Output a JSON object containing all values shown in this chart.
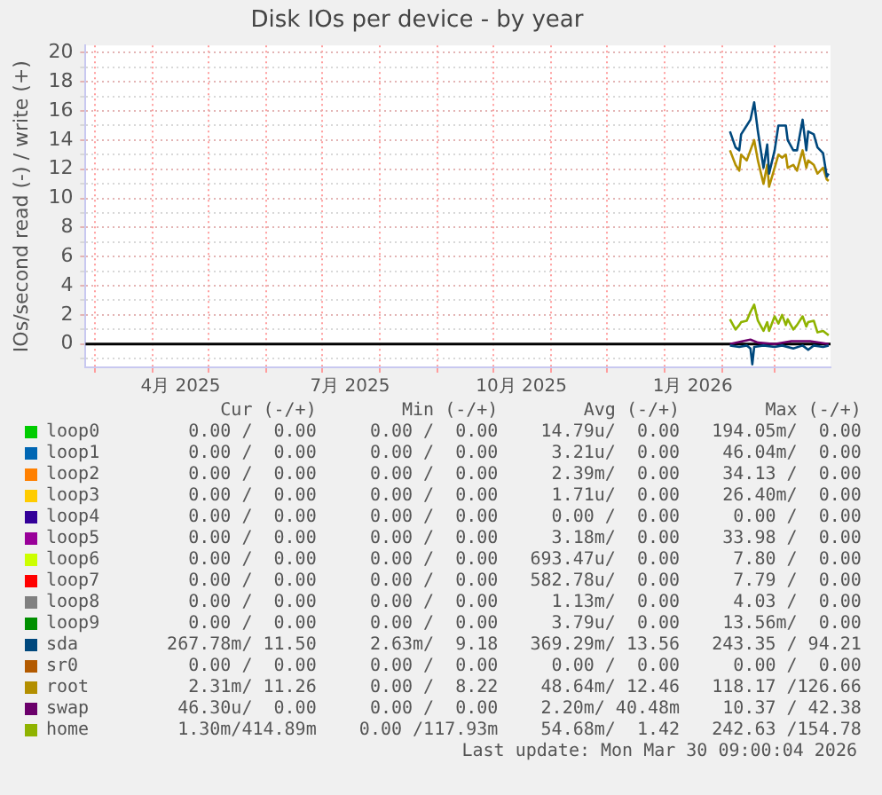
{
  "chart_data": {
    "type": "line",
    "title": "Disk IOs per device - by year",
    "ylabel": "IOs/second read (-) / write (+)",
    "xlim": [
      "2025-02-24",
      "2026-03-31"
    ],
    "xticks": [
      {
        "value": "2025-03-01",
        "label": null
      },
      {
        "value": "2025-04-01",
        "label": null
      },
      {
        "value": "2025-04-16",
        "label": "4月 2025"
      },
      {
        "value": "2025-05-01",
        "label": null
      },
      {
        "value": "2025-06-01",
        "label": null
      },
      {
        "value": "2025-07-01",
        "label": null
      },
      {
        "value": "2025-07-16",
        "label": "7月 2025"
      },
      {
        "value": "2025-08-01",
        "label": null
      },
      {
        "value": "2025-09-01",
        "label": null
      },
      {
        "value": "2025-10-01",
        "label": null
      },
      {
        "value": "2025-10-16",
        "label": "10月 2025"
      },
      {
        "value": "2025-11-01",
        "label": null
      },
      {
        "value": "2025-12-01",
        "label": null
      },
      {
        "value": "2026-01-01",
        "label": null
      },
      {
        "value": "2026-01-16",
        "label": "1月 2026"
      },
      {
        "value": "2026-02-01",
        "label": null
      },
      {
        "value": "2026-03-01",
        "label": null
      }
    ],
    "ylim": [
      -1.6,
      20.5
    ],
    "yticks": [
      {
        "value": -1,
        "label": null
      },
      0,
      {
        "value": 1,
        "label": null
      },
      2,
      {
        "value": 3,
        "label": null
      },
      4,
      {
        "value": 5,
        "label": null
      },
      6,
      {
        "value": 7,
        "label": null
      },
      8,
      {
        "value": 9,
        "label": null
      },
      10,
      {
        "value": 11,
        "label": null
      },
      12,
      {
        "value": 13,
        "label": null
      },
      14,
      {
        "value": 15,
        "label": null
      },
      16,
      {
        "value": 17,
        "label": null
      },
      18,
      {
        "value": 19,
        "label": null
      },
      20
    ],
    "grid": true,
    "legend": "bottom",
    "ref_lines": [
      {
        "axis": "y",
        "value": 0,
        "color": "#000000"
      }
    ],
    "series": [
      {
        "name": "loop0",
        "color": "#00cc00"
      },
      {
        "name": "loop1",
        "color": "#0066b3"
      },
      {
        "name": "loop2",
        "color": "#ff8000"
      },
      {
        "name": "loop3",
        "color": "#ffcc00"
      },
      {
        "name": "loop4",
        "color": "#330099"
      },
      {
        "name": "loop5",
        "color": "#990099"
      },
      {
        "name": "loop6",
        "color": "#ccff00"
      },
      {
        "name": "loop7",
        "color": "#ff0000"
      },
      {
        "name": "loop8",
        "color": "#808080"
      },
      {
        "name": "loop9",
        "color": "#008f00"
      },
      {
        "name": "sda",
        "color": "#00487d",
        "x": [
          "2026-02-05",
          "2026-02-08",
          "2026-02-10",
          "2026-02-11",
          "2026-02-14",
          "2026-02-16",
          "2026-02-18",
          "2026-02-20",
          "2026-02-23",
          "2026-02-25",
          "2026-02-26",
          "2026-03-01",
          "2026-03-03",
          "2026-03-05",
          "2026-03-07",
          "2026-03-08",
          "2026-03-11",
          "2026-03-13",
          "2026-03-16",
          "2026-03-18",
          "2026-03-19",
          "2026-03-22",
          "2026-03-24",
          "2026-03-27",
          "2026-03-29",
          "2026-03-30"
        ],
        "values": [
          14.6,
          13.5,
          13.3,
          14.4,
          15.0,
          15.4,
          16.6,
          14.6,
          12.1,
          13.7,
          11.7,
          13.3,
          15.0,
          15.0,
          15.0,
          14.0,
          13.3,
          13.3,
          15.4,
          13.3,
          14.6,
          14.4,
          13.5,
          13.1,
          11.5,
          11.7
        ]
      },
      {
        "color": "#00487d",
        "x": [
          "2026-02-05",
          "2026-02-10",
          "2026-02-14",
          "2026-02-16",
          "2026-02-17",
          "2026-02-18",
          "2026-02-23",
          "2026-03-01",
          "2026-03-05",
          "2026-03-11",
          "2026-03-16",
          "2026-03-19",
          "2026-03-22",
          "2026-03-27",
          "2026-03-30"
        ],
        "values": [
          -0.1,
          -0.2,
          -0.1,
          -0.3,
          -1.4,
          -0.2,
          -0.1,
          -0.2,
          -0.1,
          -0.3,
          -0.1,
          -0.4,
          -0.1,
          -0.2,
          -0.1
        ]
      },
      {
        "name": "sr0",
        "color": "#b35a00"
      },
      {
        "name": "root",
        "color": "#b38f00",
        "x": [
          "2026-02-05",
          "2026-02-08",
          "2026-02-10",
          "2026-02-11",
          "2026-02-14",
          "2026-02-16",
          "2026-02-18",
          "2026-02-20",
          "2026-02-23",
          "2026-02-25",
          "2026-02-26",
          "2026-03-01",
          "2026-03-03",
          "2026-03-05",
          "2026-03-07",
          "2026-03-08",
          "2026-03-11",
          "2026-03-13",
          "2026-03-16",
          "2026-03-18",
          "2026-03-19",
          "2026-03-22",
          "2026-03-24",
          "2026-03-27",
          "2026-03-29",
          "2026-03-30"
        ],
        "values": [
          13.3,
          12.3,
          11.9,
          13.0,
          12.6,
          13.3,
          14.0,
          12.6,
          11.0,
          12.3,
          10.8,
          12.1,
          13.0,
          12.8,
          13.0,
          12.1,
          12.3,
          11.9,
          13.3,
          12.1,
          12.6,
          12.3,
          11.7,
          12.1,
          11.3,
          11.2
        ]
      },
      {
        "name": "swap",
        "color": "#6b006b",
        "x": [
          "2026-02-05",
          "2026-02-12",
          "2026-02-16",
          "2026-02-20",
          "2026-03-01",
          "2026-03-10",
          "2026-03-20",
          "2026-03-30"
        ],
        "values": [
          0,
          0.2,
          0.3,
          0.1,
          0,
          0.2,
          0.2,
          0
        ]
      },
      {
        "name": "home",
        "color": "#8fb300",
        "x": [
          "2026-02-05",
          "2026-02-08",
          "2026-02-10",
          "2026-02-11",
          "2026-02-14",
          "2026-02-16",
          "2026-02-18",
          "2026-02-20",
          "2026-02-23",
          "2026-02-25",
          "2026-02-26",
          "2026-03-01",
          "2026-03-03",
          "2026-03-05",
          "2026-03-07",
          "2026-03-08",
          "2026-03-11",
          "2026-03-13",
          "2026-03-16",
          "2026-03-18",
          "2026-03-19",
          "2026-03-22",
          "2026-03-24",
          "2026-03-27",
          "2026-03-29",
          "2026-03-30"
        ],
        "values": [
          1.7,
          1.0,
          1.3,
          1.5,
          1.6,
          2.2,
          2.7,
          1.6,
          0.9,
          1.5,
          0.9,
          1.9,
          1.4,
          2.0,
          1.3,
          1.7,
          1.0,
          1.3,
          1.9,
          1.2,
          1.5,
          1.6,
          0.8,
          0.9,
          0.7,
          0.6
        ]
      }
    ],
    "annotations": [
      "        Cur (-/+)        Min (-/+)        Avg (-/+)        Max (-/+)",
      "     0.00 /  0.00     0.00 /  0.00    14.79u/  0.00   194.05m/  0.00",
      "     0.00 /  0.00     0.00 /  0.00     3.21u/  0.00    46.04m/  0.00",
      "     0.00 /  0.00     0.00 /  0.00     2.39m/  0.00    34.13 /  0.00",
      "     0.00 /  0.00     0.00 /  0.00     1.71u/  0.00    26.40m/  0.00",
      "     0.00 /  0.00     0.00 /  0.00     0.00 /  0.00     0.00 /  0.00",
      "     0.00 /  0.00     0.00 /  0.00     3.18m/  0.00    33.98 /  0.00",
      "     0.00 /  0.00     0.00 /  0.00   693.47u/  0.00     7.80 /  0.00",
      "     0.00 /  0.00     0.00 /  0.00   582.78u/  0.00     7.79 /  0.00",
      "     0.00 /  0.00     0.00 /  0.00     1.13m/  0.00     4.03 /  0.00",
      "     0.00 /  0.00     0.00 /  0.00     3.79u/  0.00    13.56m/  0.00",
      "   267.78m/ 11.50     2.63m/  9.18   369.29m/ 13.56   243.35 / 94.21",
      "     0.00 /  0.00     0.00 /  0.00     0.00 /  0.00     0.00 /  0.00",
      "     2.31m/ 11.26     0.00 /  8.22    48.64m/ 12.46   118.17 /126.66",
      "    46.30u/  0.00     0.00 /  0.00    2.20m/ 40.48m    10.37 / 42.38",
      "    1.30m/414.89m    0.00 /117.93m    54.68m/  1.42   242.63 /154.78",
      "Last update: Mon Mar 30 09:00:04 2026"
    ]
  }
}
